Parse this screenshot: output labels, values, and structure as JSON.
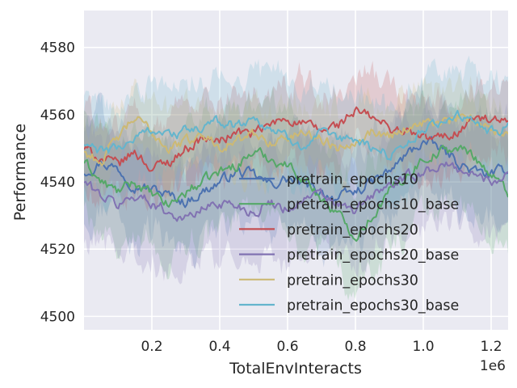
{
  "chart_data": {
    "type": "line",
    "xlabel": "TotalEnvInteracts",
    "ylabel": "Performance",
    "x_offset_label": "1e6",
    "xlim": [
      0,
      1250000
    ],
    "ylim": [
      4496,
      4591
    ],
    "xticks": [
      200000,
      400000,
      600000,
      800000,
      1000000,
      1200000
    ],
    "xtick_labels": [
      "0.2",
      "0.4",
      "0.6",
      "0.8",
      "1.0",
      "1.2"
    ],
    "yticks": [
      4500,
      4520,
      4540,
      4560,
      4580
    ],
    "ytick_labels": [
      "4500",
      "4520",
      "4540",
      "4560",
      "4580"
    ],
    "grid": true,
    "style": "seaborn-darkgrid",
    "legend_position": "lower-right",
    "shaded_band": "spread across runs around each mean line",
    "x": [
      0,
      50000,
      100000,
      150000,
      200000,
      250000,
      300000,
      350000,
      400000,
      450000,
      500000,
      550000,
      600000,
      650000,
      700000,
      750000,
      800000,
      850000,
      900000,
      950000,
      1000000,
      1050000,
      1100000,
      1150000,
      1200000,
      1250000
    ],
    "series": [
      {
        "name": "pretrain_epochs10",
        "color": "#4c72b0",
        "band": 14,
        "values": [
          4543,
          4546,
          4544,
          4539,
          4538,
          4536,
          4534,
          4537,
          4540,
          4543,
          4542,
          4539,
          4541,
          4539,
          4537,
          4535,
          4537,
          4540,
          4543,
          4548,
          4552,
          4550,
          4546,
          4543,
          4542,
          4544
        ]
      },
      {
        "name": "pretrain_epochs10_base",
        "color": "#55a868",
        "band": 16,
        "values": [
          4546,
          4540,
          4537,
          4540,
          4536,
          4533,
          4537,
          4540,
          4543,
          4545,
          4549,
          4547,
          4545,
          4541,
          4535,
          4530,
          4524,
          4530,
          4537,
          4542,
          4547,
          4549,
          4550,
          4548,
          4542,
          4537
        ]
      },
      {
        "name": "pretrain_epochs20",
        "color": "#c44e52",
        "band": 11,
        "values": [
          4550,
          4547,
          4545,
          4549,
          4544,
          4546,
          4550,
          4553,
          4552,
          4555,
          4554,
          4557,
          4559,
          4557,
          4555,
          4557,
          4561,
          4559,
          4556,
          4555,
          4553,
          4553,
          4555,
          4559,
          4558,
          4557
        ]
      },
      {
        "name": "pretrain_epochs20_base",
        "color": "#8172b2",
        "band": 15,
        "values": [
          4540,
          4536,
          4533,
          4536,
          4534,
          4531,
          4529,
          4532,
          4534,
          4533,
          4531,
          4534,
          4532,
          4535,
          4536,
          4533,
          4531,
          4536,
          4539,
          4541,
          4543,
          4545,
          4544,
          4542,
          4540,
          4543
        ]
      },
      {
        "name": "pretrain_epochs30",
        "color": "#ccb974",
        "band": 10,
        "values": [
          4549,
          4546,
          4553,
          4559,
          4555,
          4550,
          4552,
          4554,
          4551,
          4552,
          4554,
          4552,
          4553,
          4555,
          4553,
          4550,
          4553,
          4555,
          4554,
          4556,
          4558,
          4557,
          4559,
          4558,
          4556,
          4555
        ]
      },
      {
        "name": "pretrain_epochs30_base",
        "color": "#64b5cd",
        "band": 14,
        "values": [
          4551,
          4549,
          4550,
          4553,
          4556,
          4554,
          4555,
          4556,
          4558,
          4557,
          4559,
          4556,
          4553,
          4551,
          4554,
          4552,
          4553,
          4550,
          4548,
          4552,
          4555,
          4558,
          4560,
          4557,
          4555,
          4556
        ]
      }
    ]
  }
}
